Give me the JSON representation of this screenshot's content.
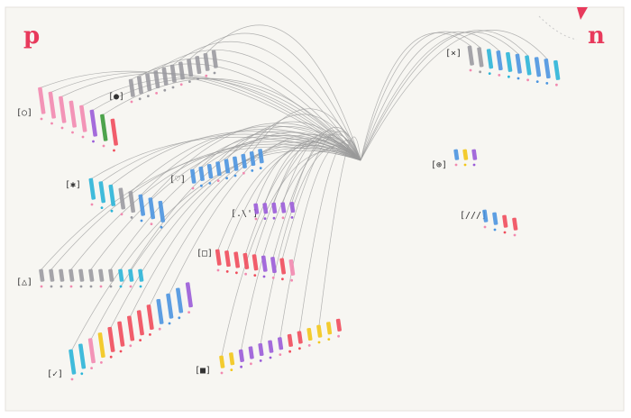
{
  "corners": {
    "left": "p",
    "right": "n"
  },
  "colors": {
    "paper": "#f7f6f2",
    "thread": "#9a9a9a",
    "corner": "#e83a5c",
    "gray": "#9b9ba1",
    "pink": "#f28ab0",
    "cyan": "#2bb5d8",
    "blue": "#4b95e0",
    "purple": "#9a5cd8",
    "red": "#f04d5c",
    "yellow": "#f2c71a",
    "green": "#3a9a3a",
    "darkblue": "#2a3aa8"
  },
  "groups": [
    {
      "id": "circle",
      "label": "[○]",
      "connected": true,
      "strokes": [
        "pink",
        "pink",
        "pink",
        "pink",
        "pink",
        "purple",
        "green",
        "red"
      ]
    },
    {
      "id": "dot",
      "label": "[●]",
      "connected": true,
      "strokes": [
        "gray",
        "gray",
        "gray",
        "gray",
        "gray",
        "gray",
        "gray",
        "gray",
        "gray",
        "gray",
        "gray"
      ]
    },
    {
      "id": "cross",
      "label": "[×]",
      "connected": true,
      "strokes": [
        "gray",
        "gray",
        "cyan",
        "blue",
        "cyan",
        "blue",
        "cyan",
        "blue",
        "blue",
        "cyan"
      ]
    },
    {
      "id": "asterisk",
      "label": "[✱]",
      "connected": true,
      "strokes": [
        "cyan",
        "cyan",
        "cyan",
        "gray",
        "gray",
        "blue",
        "blue",
        "blue"
      ]
    },
    {
      "id": "heart",
      "label": "[♡]",
      "connected": true,
      "strokes": [
        "blue",
        "blue",
        "blue",
        "blue",
        "blue",
        "blue",
        "blue",
        "blue",
        "blue"
      ]
    },
    {
      "id": "spark",
      "label": "[.\\']",
      "connected": true,
      "strokes": [
        "purple",
        "purple",
        "purple",
        "purple",
        "purple"
      ]
    },
    {
      "id": "bullseye",
      "label": "[⊕]",
      "connected": false,
      "strokes": [
        "blue",
        "yellow",
        "purple"
      ]
    },
    {
      "id": "triple",
      "label": "[///]",
      "connected": false,
      "strokes": [
        "blue",
        "blue",
        "red",
        "red"
      ]
    },
    {
      "id": "square",
      "label": "[□]",
      "connected": true,
      "strokes": [
        "red",
        "red",
        "red",
        "red",
        "red",
        "purple",
        "purple",
        "red",
        "pink"
      ]
    },
    {
      "id": "triangle",
      "label": "[△]",
      "connected": true,
      "strokes": [
        "gray",
        "gray",
        "gray",
        "gray",
        "gray",
        "gray",
        "gray",
        "gray",
        "cyan",
        "cyan",
        "cyan"
      ]
    },
    {
      "id": "check",
      "label": "[✓]",
      "connected": true,
      "strokes": [
        "cyan",
        "cyan",
        "pink",
        "yellow",
        "red",
        "red",
        "red",
        "red",
        "red",
        "blue",
        "blue",
        "blue",
        "purple"
      ]
    },
    {
      "id": "filled-square",
      "label": "[■]",
      "connected": true,
      "strokes": [
        "yellow",
        "yellow",
        "purple",
        "purple",
        "purple",
        "purple",
        "purple",
        "red",
        "red",
        "yellow",
        "yellow",
        "yellow",
        "red"
      ]
    }
  ]
}
